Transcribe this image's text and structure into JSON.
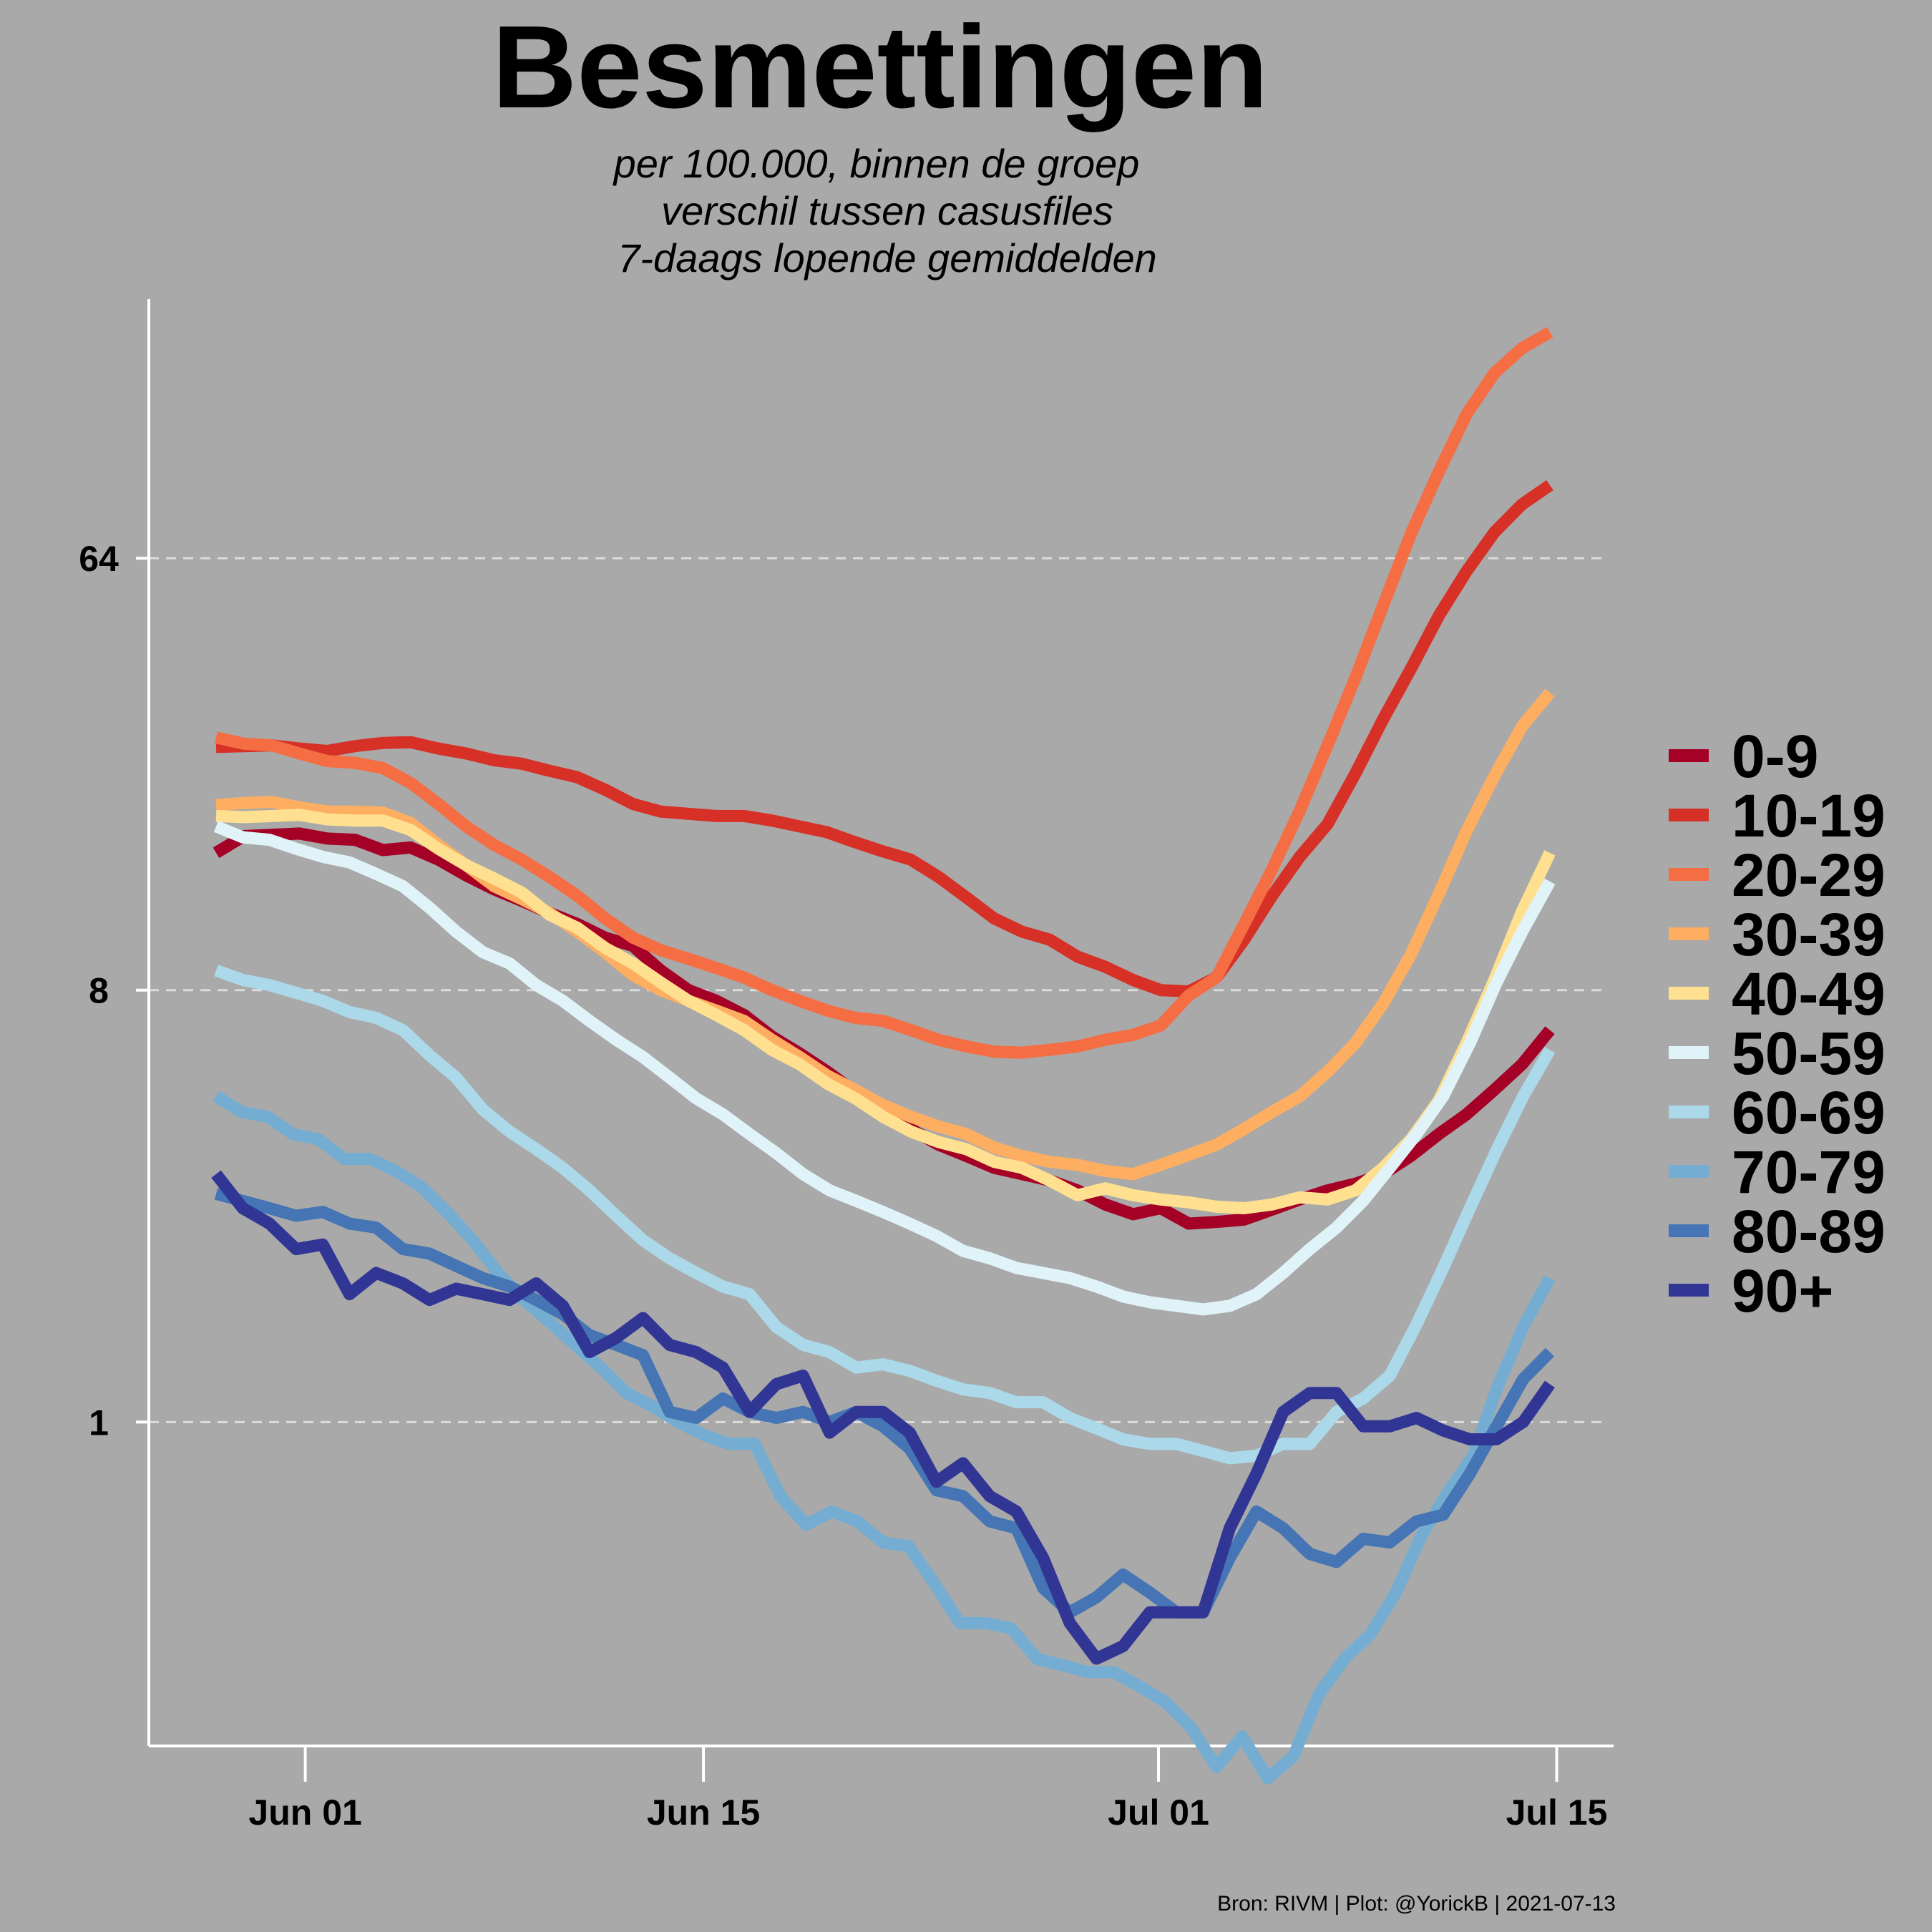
{
  "chart_data": {
    "type": "line",
    "title": "Besmettingen",
    "subtitle_lines": [
      "per 100.000, binnen de groep",
      "verschil tussen casusfiles",
      "7-daags lopende gemiddelden"
    ],
    "caption": "Bron: RIVM | Plot: @YorickB  |  2021-07-13",
    "xlabel": "",
    "ylabel": "",
    "y_scale": "log2",
    "y_ticks": [
      1,
      8,
      64
    ],
    "y_tick_labels": [
      "1",
      "8",
      "64"
    ],
    "x_ticks": [
      "Jun 01",
      "Jun 15",
      "Jul 01",
      "Jul 15"
    ],
    "x_start": "May 29",
    "x_end": "Jul 13",
    "x_range_days": [
      -5.5,
      46
    ],
    "y_range_log2": [
      -2.25,
      7.8
    ],
    "grid": "horizontal dashed",
    "legend_position": "right",
    "series": [
      {
        "name": "0-9",
        "color": "#a50026",
        "values": [
          15.5,
          16.8,
          16.9,
          17.0,
          16.6,
          16.5,
          15.7,
          15.9,
          15.0,
          13.9,
          13.0,
          12.3,
          11.6,
          11.0,
          10.3,
          9.9,
          8.8,
          8.0,
          7.6,
          7.1,
          6.4,
          5.9,
          5.4,
          4.9,
          4.5,
          4.1,
          3.8,
          3.6,
          3.4,
          3.3,
          3.2,
          3.05,
          2.85,
          2.72,
          2.8,
          2.6,
          2.62,
          2.65,
          2.78,
          2.92,
          3.05,
          3.15,
          3.3,
          3.6,
          4.0,
          4.4,
          4.95,
          5.6,
          6.6
        ]
      },
      {
        "name": "10-19",
        "color": "#d73027",
        "values": [
          25.8,
          25.9,
          26.0,
          25.6,
          25.3,
          25.9,
          26.3,
          26.4,
          25.6,
          25.0,
          24.2,
          23.8,
          23.0,
          22.3,
          21.0,
          19.6,
          18.9,
          18.7,
          18.5,
          18.5,
          18.1,
          17.6,
          17.1,
          16.3,
          15.6,
          15.0,
          13.8,
          12.5,
          11.3,
          10.6,
          10.2,
          9.4,
          8.95,
          8.4,
          8.0,
          7.95,
          8.5,
          10.2,
          12.6,
          15.2,
          17.8,
          22.7,
          29.5,
          37.6,
          48.5,
          60.1,
          72.5,
          83.0,
          91.0
        ]
      },
      {
        "name": "20-29",
        "color": "#f46d43",
        "values": [
          27.0,
          26.2,
          26.0,
          25.0,
          24.1,
          23.9,
          23.3,
          21.7,
          19.6,
          17.6,
          16.1,
          15.0,
          13.8,
          12.6,
          11.3,
          10.3,
          9.7,
          9.3,
          8.9,
          8.5,
          8.0,
          7.6,
          7.25,
          7.0,
          6.9,
          6.6,
          6.3,
          6.1,
          5.95,
          5.92,
          6.0,
          6.1,
          6.3,
          6.45,
          6.75,
          7.8,
          8.5,
          11.0,
          14.3,
          19.0,
          26.0,
          36.0,
          51.0,
          72.0,
          97.0,
          128.0,
          156.0,
          176.0,
          190.0
        ]
      },
      {
        "name": "30-39",
        "color": "#fdae61",
        "values": [
          19.5,
          19.7,
          19.8,
          19.3,
          18.9,
          18.9,
          18.8,
          17.9,
          16.1,
          14.6,
          13.2,
          12.4,
          11.6,
          10.6,
          9.6,
          8.6,
          8.0,
          7.6,
          7.25,
          6.9,
          6.3,
          5.8,
          5.3,
          4.95,
          4.6,
          4.35,
          4.15,
          4.0,
          3.75,
          3.6,
          3.5,
          3.45,
          3.35,
          3.3,
          3.45,
          3.62,
          3.8,
          4.1,
          4.45,
          4.8,
          5.4,
          6.2,
          7.5,
          9.5,
          12.7,
          17.2,
          22.4,
          28.5,
          33.5
        ]
      },
      {
        "name": "40-49",
        "color": "#fee090",
        "values": [
          18.5,
          18.4,
          18.5,
          18.6,
          18.2,
          18.1,
          18.1,
          17.3,
          15.8,
          14.6,
          13.7,
          12.8,
          11.5,
          10.8,
          9.8,
          9.1,
          8.3,
          7.6,
          7.1,
          6.6,
          6.0,
          5.6,
          5.1,
          4.75,
          4.35,
          4.05,
          3.85,
          3.72,
          3.5,
          3.4,
          3.2,
          2.98,
          3.08,
          2.98,
          2.92,
          2.88,
          2.82,
          2.8,
          2.85,
          2.95,
          2.92,
          3.05,
          3.4,
          3.9,
          4.7,
          6.2,
          8.4,
          11.7,
          15.5
        ]
      },
      {
        "name": "50-59",
        "color": "#e0f3f8",
        "values": [
          17.6,
          16.7,
          16.5,
          15.8,
          15.2,
          14.8,
          14.0,
          13.2,
          11.9,
          10.6,
          9.6,
          9.1,
          8.2,
          7.6,
          6.9,
          6.3,
          5.8,
          5.25,
          4.75,
          4.4,
          4.0,
          3.65,
          3.3,
          3.05,
          2.9,
          2.75,
          2.6,
          2.45,
          2.28,
          2.2,
          2.1,
          2.05,
          2.0,
          1.92,
          1.83,
          1.78,
          1.75,
          1.72,
          1.75,
          1.85,
          2.05,
          2.3,
          2.55,
          2.9,
          3.4,
          4.0,
          4.8,
          6.2,
          8.3,
          10.7,
          13.5
        ]
      },
      {
        "name": "60-69",
        "color": "#abd9e9",
        "values": [
          8.8,
          8.4,
          8.2,
          7.9,
          7.6,
          7.2,
          7.0,
          6.6,
          5.85,
          5.25,
          4.5,
          4.05,
          3.72,
          3.4,
          3.05,
          2.7,
          2.4,
          2.2,
          2.05,
          1.92,
          1.85,
          1.58,
          1.45,
          1.4,
          1.3,
          1.32,
          1.28,
          1.22,
          1.17,
          1.15,
          1.1,
          1.1,
          1.02,
          0.97,
          0.92,
          0.9,
          0.9,
          0.87,
          0.84,
          0.85,
          0.9,
          0.9,
          1.05,
          1.12,
          1.25,
          1.6,
          2.1,
          2.8,
          3.7,
          4.8,
          6.0
        ]
      },
      {
        "name": "70-79",
        "color": "#74add1",
        "values": [
          4.8,
          4.45,
          4.35,
          4.0,
          3.9,
          3.55,
          3.55,
          3.35,
          3.1,
          2.75,
          2.4,
          2.05,
          1.8,
          1.62,
          1.45,
          1.3,
          1.15,
          1.08,
          1.0,
          0.94,
          0.9,
          0.9,
          0.7,
          0.61,
          0.65,
          0.62,
          0.56,
          0.55,
          0.46,
          0.38,
          0.38,
          0.37,
          0.32,
          0.31,
          0.3,
          0.3,
          0.28,
          0.26,
          0.23,
          0.19,
          0.22,
          0.18,
          0.2,
          0.27,
          0.32,
          0.36,
          0.44,
          0.58,
          0.71,
          0.85,
          1.2,
          1.6,
          2.0
        ]
      },
      {
        "name": "80-89",
        "color": "#4575b4",
        "values": [
          3.0,
          2.9,
          2.8,
          2.7,
          2.75,
          2.6,
          2.55,
          2.3,
          2.25,
          2.12,
          2.0,
          1.92,
          1.8,
          1.68,
          1.52,
          1.45,
          1.38,
          1.05,
          1.02,
          1.12,
          1.05,
          1.02,
          1.05,
          1.0,
          1.05,
          0.98,
          0.88,
          0.72,
          0.7,
          0.62,
          0.6,
          0.45,
          0.4,
          0.43,
          0.48,
          0.44,
          0.4,
          0.4,
          0.52,
          0.65,
          0.6,
          0.53,
          0.51,
          0.57,
          0.56,
          0.62,
          0.64,
          0.78,
          0.98,
          1.23,
          1.4
        ]
      },
      {
        "name": "90+",
        "color": "#313695",
        "values": [
          3.3,
          2.8,
          2.6,
          2.3,
          2.35,
          1.85,
          2.05,
          1.95,
          1.8,
          1.9,
          1.85,
          1.8,
          1.95,
          1.75,
          1.4,
          1.5,
          1.65,
          1.45,
          1.4,
          1.3,
          1.05,
          1.2,
          1.25,
          0.95,
          1.05,
          1.05,
          0.95,
          0.75,
          0.82,
          0.7,
          0.65,
          0.52,
          0.38,
          0.32,
          0.34,
          0.4,
          0.4,
          0.4,
          0.6,
          0.78,
          1.05,
          1.15,
          1.15,
          0.98,
          0.98,
          1.02,
          0.96,
          0.92,
          0.92,
          1.0,
          1.2
        ]
      }
    ]
  }
}
